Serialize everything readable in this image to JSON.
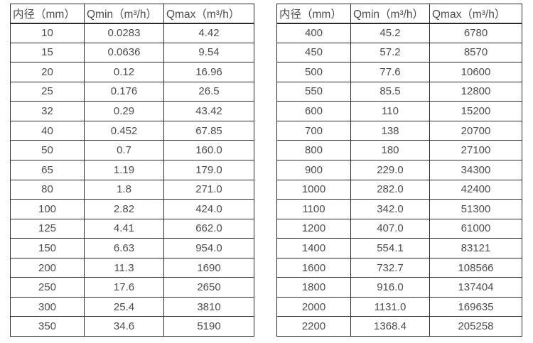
{
  "colors": {
    "border": "#2b2b2b",
    "text": "#4d4d4d",
    "background": "#ffffff"
  },
  "tables": [
    {
      "name": "flow-spec-table-small-diameters",
      "headers": [
        "内径（mm）",
        "Qmin（m³/h）",
        "Qmax（m³/h）"
      ],
      "rows": [
        [
          "10",
          "0.0283",
          "4.42"
        ],
        [
          "15",
          "0.0636",
          "9.54"
        ],
        [
          "20",
          "0.12",
          "16.96"
        ],
        [
          "25",
          "0.176",
          "26.5"
        ],
        [
          "32",
          "0.29",
          "43.42"
        ],
        [
          "40",
          "0.452",
          "67.85"
        ],
        [
          "50",
          "0.7",
          "160.0"
        ],
        [
          "65",
          "1.19",
          "179.0"
        ],
        [
          "80",
          "1.8",
          "271.0"
        ],
        [
          "100",
          "2.82",
          "424.0"
        ],
        [
          "125",
          "4.41",
          "662.0"
        ],
        [
          "150",
          "6.63",
          "954.0"
        ],
        [
          "200",
          "11.3",
          "1690"
        ],
        [
          "250",
          "17.6",
          "2650"
        ],
        [
          "300",
          "25.4",
          "3810"
        ],
        [
          "350",
          "34.6",
          "5190"
        ]
      ]
    },
    {
      "name": "flow-spec-table-large-diameters",
      "headers": [
        "内径（mm）",
        "Qmin（m³/h）",
        "Qmax（m³/h）"
      ],
      "rows": [
        [
          "400",
          "45.2",
          "6780"
        ],
        [
          "450",
          "57.2",
          "8570"
        ],
        [
          "500",
          "77.6",
          "10600"
        ],
        [
          "550",
          "85.5",
          "12800"
        ],
        [
          "600",
          "110",
          "15200"
        ],
        [
          "700",
          "138",
          "20700"
        ],
        [
          "800",
          "180",
          "27100"
        ],
        [
          "900",
          "229.0",
          "34300"
        ],
        [
          "1000",
          "282.0",
          "42400"
        ],
        [
          "1100",
          "342.0",
          "51300"
        ],
        [
          "1200",
          "407.0",
          "61000"
        ],
        [
          "1400",
          "554.1",
          "83121"
        ],
        [
          "1600",
          "732.7",
          "108566"
        ],
        [
          "1800",
          "916.0",
          "137404"
        ],
        [
          "2000",
          "1131.0",
          "169635"
        ],
        [
          "2200",
          "1368.4",
          "205258"
        ]
      ]
    }
  ]
}
